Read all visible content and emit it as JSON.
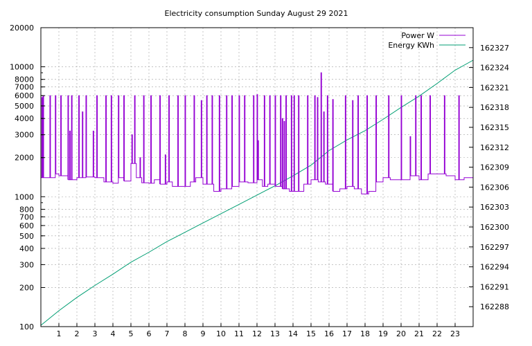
{
  "chart_data": {
    "type": "line",
    "title": "Electricity consumption Sunday August 29 2021",
    "xlabel": "",
    "ylabel": "",
    "y2label": "",
    "xlim": [
      0,
      24
    ],
    "ylim": [
      100,
      20000
    ],
    "yscale": "log",
    "y2lim": [
      162285,
      162330
    ],
    "grid": true,
    "legend_position": "top-right",
    "x_ticks": [
      1,
      2,
      3,
      4,
      5,
      6,
      7,
      8,
      9,
      10,
      11,
      12,
      13,
      14,
      15,
      16,
      17,
      18,
      19,
      20,
      21,
      22,
      23
    ],
    "y_ticks": [
      {
        "value": 100,
        "label": "100"
      },
      {
        "value": 200,
        "label": "200"
      },
      {
        "value": 300,
        "label": "300"
      },
      {
        "value": 400,
        "label": "400"
      },
      {
        "value": 500,
        "label": "500"
      },
      {
        "value": 600,
        "label": "600"
      },
      {
        "value": 700,
        "label": "700"
      },
      {
        "value": 800,
        "label": "800"
      },
      {
        "value": 1000,
        "label": "1000"
      },
      {
        "value": 2000,
        "label": "2000"
      },
      {
        "value": 3000,
        "label": "3000"
      },
      {
        "value": 4000,
        "label": "4000"
      },
      {
        "value": 5000,
        "label": "5000"
      },
      {
        "value": 6000,
        "label": "6000"
      },
      {
        "value": 7000,
        "label": "7000"
      },
      {
        "value": 8000,
        "label": "8000"
      },
      {
        "value": 10000,
        "label": "10000"
      },
      {
        "value": 20000,
        "label": "20000"
      }
    ],
    "y2_ticks": [
      162288,
      162291,
      162294,
      162297,
      162300,
      162303,
      162306,
      162309,
      162312,
      162315,
      162318,
      162321,
      162324,
      162327
    ],
    "series": [
      {
        "name": "Power W",
        "axis": "left",
        "color": "#9400d3",
        "baseline": [
          [
            0,
            1400
          ],
          [
            0.5,
            1400
          ],
          [
            0.8,
            1500
          ],
          [
            1,
            1450
          ],
          [
            1.5,
            1350
          ],
          [
            2,
            1400
          ],
          [
            2.5,
            1420
          ],
          [
            3,
            1400
          ],
          [
            3.5,
            1300
          ],
          [
            4,
            1270
          ],
          [
            4.3,
            1400
          ],
          [
            4.6,
            1320
          ],
          [
            5,
            1800
          ],
          [
            5.3,
            1400
          ],
          [
            5.6,
            1280
          ],
          [
            6,
            1270
          ],
          [
            6.3,
            1350
          ],
          [
            6.6,
            1250
          ],
          [
            7,
            1300
          ],
          [
            7.3,
            1200
          ],
          [
            8,
            1200
          ],
          [
            8.3,
            1300
          ],
          [
            8.6,
            1400
          ],
          [
            9,
            1250
          ],
          [
            9.6,
            1100
          ],
          [
            10,
            1150
          ],
          [
            10.6,
            1200
          ],
          [
            11,
            1300
          ],
          [
            11.5,
            1280
          ],
          [
            12,
            1350
          ],
          [
            12.3,
            1200
          ],
          [
            12.6,
            1250
          ],
          [
            13,
            1200
          ],
          [
            13.4,
            1150
          ],
          [
            13.8,
            1100
          ],
          [
            14.2,
            1100
          ],
          [
            14.6,
            1250
          ],
          [
            15,
            1350
          ],
          [
            15.4,
            1300
          ],
          [
            15.8,
            1250
          ],
          [
            16.2,
            1100
          ],
          [
            16.6,
            1150
          ],
          [
            17,
            1200
          ],
          [
            17.4,
            1150
          ],
          [
            17.8,
            1050
          ],
          [
            18.2,
            1100
          ],
          [
            18.6,
            1300
          ],
          [
            19,
            1400
          ],
          [
            19.4,
            1350
          ],
          [
            20,
            1350
          ],
          [
            20.5,
            1450
          ],
          [
            21,
            1350
          ],
          [
            21.5,
            1500
          ],
          [
            22,
            1500
          ],
          [
            22.5,
            1450
          ],
          [
            23,
            1350
          ],
          [
            23.5,
            1400
          ],
          [
            24,
            1450
          ]
        ],
        "spikes": [
          [
            0.05,
            5800
          ],
          [
            0.12,
            6000
          ],
          [
            0.5,
            6000
          ],
          [
            0.8,
            6000
          ],
          [
            1.1,
            6000
          ],
          [
            1.5,
            6000
          ],
          [
            1.6,
            3200
          ],
          [
            1.7,
            6000
          ],
          [
            2.1,
            6000
          ],
          [
            2.3,
            4500
          ],
          [
            2.5,
            6000
          ],
          [
            2.9,
            3200
          ],
          [
            3.1,
            6000
          ],
          [
            3.6,
            6000
          ],
          [
            3.9,
            6000
          ],
          [
            4.3,
            6000
          ],
          [
            4.6,
            6000
          ],
          [
            5.05,
            3000
          ],
          [
            5.2,
            6000
          ],
          [
            5.5,
            2000
          ],
          [
            5.7,
            6000
          ],
          [
            6.1,
            6000
          ],
          [
            6.6,
            6000
          ],
          [
            6.9,
            2100
          ],
          [
            7.1,
            6000
          ],
          [
            7.6,
            6000
          ],
          [
            8.0,
            6000
          ],
          [
            8.5,
            6000
          ],
          [
            8.9,
            5500
          ],
          [
            9.2,
            6000
          ],
          [
            9.5,
            6000
          ],
          [
            9.9,
            6000
          ],
          [
            10.3,
            6000
          ],
          [
            10.6,
            6000
          ],
          [
            11.0,
            6000
          ],
          [
            11.3,
            6000
          ],
          [
            11.8,
            6000
          ],
          [
            12.0,
            6100
          ],
          [
            12.05,
            2700
          ],
          [
            12.4,
            6000
          ],
          [
            12.7,
            6000
          ],
          [
            13.0,
            6000
          ],
          [
            13.3,
            6000
          ],
          [
            13.4,
            4000
          ],
          [
            13.5,
            3800
          ],
          [
            13.6,
            6000
          ],
          [
            13.9,
            6000
          ],
          [
            14.05,
            6000
          ],
          [
            14.3,
            6000
          ],
          [
            14.8,
            6000
          ],
          [
            15.2,
            6000
          ],
          [
            15.35,
            5800
          ],
          [
            15.55,
            9000
          ],
          [
            15.7,
            4500
          ],
          [
            15.9,
            6000
          ],
          [
            16.2,
            5600
          ],
          [
            16.9,
            6000
          ],
          [
            17.3,
            5500
          ],
          [
            17.6,
            6000
          ],
          [
            18.1,
            6000
          ],
          [
            18.6,
            6000
          ],
          [
            19.3,
            6000
          ],
          [
            20.0,
            6000
          ],
          [
            20.5,
            2900
          ],
          [
            20.8,
            6000
          ],
          [
            21.1,
            6000
          ],
          [
            21.6,
            6000
          ],
          [
            22.4,
            6000
          ],
          [
            23.2,
            6000
          ]
        ]
      },
      {
        "name": "Energy KWh",
        "axis": "right",
        "color": "#009e73",
        "points": [
          [
            0,
            162285.2
          ],
          [
            1,
            162287.4
          ],
          [
            2,
            162289.4
          ],
          [
            3,
            162291.2
          ],
          [
            4,
            162292.9
          ],
          [
            5,
            162294.7
          ],
          [
            6,
            162296.2
          ],
          [
            7,
            162297.8
          ],
          [
            8,
            162299.2
          ],
          [
            9,
            162300.6
          ],
          [
            10,
            162302.0
          ],
          [
            11,
            162303.4
          ],
          [
            12,
            162304.8
          ],
          [
            13,
            162306.2
          ],
          [
            14,
            162307.7
          ],
          [
            15,
            162309.3
          ],
          [
            16,
            162311.5
          ],
          [
            17,
            162313.1
          ],
          [
            18,
            162314.5
          ],
          [
            19,
            162316.2
          ],
          [
            20,
            162318.0
          ],
          [
            21,
            162319.7
          ],
          [
            22,
            162321.6
          ],
          [
            23,
            162323.6
          ],
          [
            24,
            162325.1
          ]
        ]
      }
    ]
  }
}
